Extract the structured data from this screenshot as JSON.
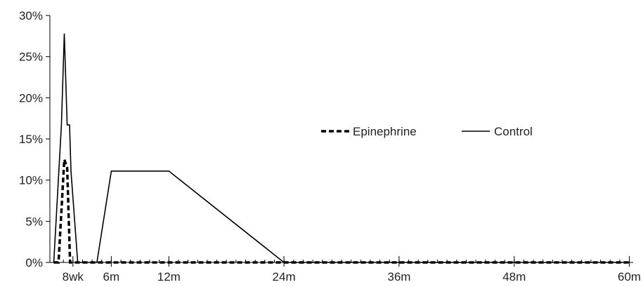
{
  "chart_data": {
    "type": "line",
    "title": "",
    "xlabel": "",
    "ylabel": "",
    "x": [
      0,
      1,
      2,
      3,
      4,
      5,
      6,
      7,
      8,
      9,
      10,
      11,
      12,
      13,
      14,
      15,
      16,
      17,
      18,
      19,
      20,
      21,
      22,
      23,
      24,
      25,
      26,
      27,
      28,
      29,
      30,
      31,
      32,
      33,
      34,
      35,
      36,
      37,
      38,
      39,
      40,
      41,
      42,
      43,
      44,
      45,
      46,
      47,
      48,
      49,
      50,
      51,
      52,
      53,
      54,
      55,
      56,
      57,
      58,
      59,
      60
    ],
    "x_tick_labels": [
      {
        "x": 2,
        "label": "8wk"
      },
      {
        "x": 6,
        "label": "6m"
      },
      {
        "x": 12,
        "label": "12m"
      },
      {
        "x": 24,
        "label": "24m"
      },
      {
        "x": 36,
        "label": "36m"
      },
      {
        "x": 48,
        "label": "48m"
      },
      {
        "x": 60,
        "label": "60m"
      }
    ],
    "y_ticks": [
      {
        "value": 0,
        "label": "0%"
      },
      {
        "value": 5,
        "label": "5%"
      },
      {
        "value": 10,
        "label": "10%"
      },
      {
        "value": 15,
        "label": "15%"
      },
      {
        "value": 20,
        "label": "20%"
      },
      {
        "value": 25,
        "label": "25%"
      },
      {
        "value": 30,
        "label": "30%"
      }
    ],
    "ylim": [
      0,
      30
    ],
    "xlim": [
      -0.4,
      60.4
    ],
    "grid": false,
    "legend_position": "center-right",
    "series": [
      {
        "name": "Epinephrine",
        "style": "dashed",
        "color": "#000000",
        "points": [
          [
            0.0,
            0
          ],
          [
            0.5,
            0
          ],
          [
            1.1,
            12.5
          ],
          [
            1.4,
            11.5
          ],
          [
            1.7,
            0
          ],
          [
            3,
            0
          ],
          [
            6,
            0
          ],
          [
            12,
            0
          ],
          [
            24,
            0
          ],
          [
            36,
            0
          ],
          [
            48,
            0
          ],
          [
            60,
            0
          ]
        ]
      },
      {
        "name": "Control",
        "style": "solid",
        "color": "#000000",
        "points": [
          [
            0.0,
            0
          ],
          [
            0.8,
            16.7
          ],
          [
            1.1,
            27.8
          ],
          [
            1.4,
            16.7
          ],
          [
            1.65,
            16.7
          ],
          [
            1.8,
            11.1
          ],
          [
            2.5,
            0
          ],
          [
            4.5,
            0
          ],
          [
            6,
            11.1
          ],
          [
            12,
            11.1
          ],
          [
            24,
            0
          ],
          [
            36,
            0
          ],
          [
            48,
            0
          ],
          [
            60,
            0
          ]
        ]
      }
    ]
  }
}
